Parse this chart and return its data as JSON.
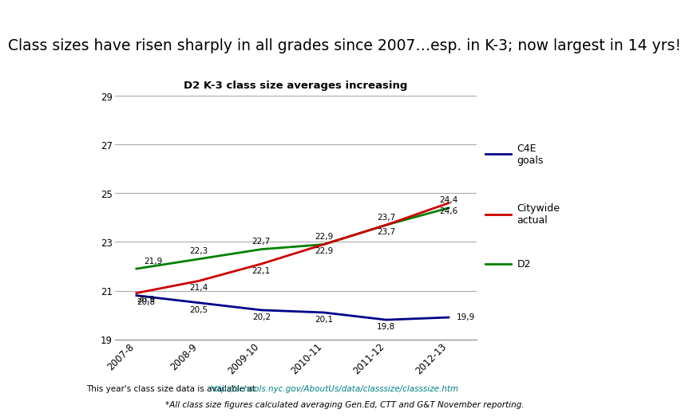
{
  "title_box": "Class sizes have risen sharply in all grades since 2007…esp. in K-3; now largest in 14 yrs!",
  "chart_title": "D2 K-3 class size averages increasing",
  "x_labels": [
    "2007-8",
    "2008-9",
    "2009-10",
    "2010-11",
    "2011-12",
    "2012-13"
  ],
  "d2_values": [
    21.9,
    22.3,
    22.7,
    22.9,
    23.7,
    24.4
  ],
  "citywide_values": [
    20.9,
    21.4,
    22.1,
    22.9,
    23.7,
    24.6
  ],
  "c4e_values": [
    20.8,
    20.5,
    20.2,
    20.1,
    19.8,
    19.9
  ],
  "d2_labels": [
    "21,9",
    "22,3",
    "22,7",
    "22,9",
    "23,7",
    "24,4"
  ],
  "citywide_labels": [
    "20,9",
    "21,4",
    "22,1",
    "22,9",
    "23,7",
    "24,6"
  ],
  "c4e_labels": [
    "20,8",
    "20,5",
    "20,2",
    "20,1",
    "19,8",
    "19,9"
  ],
  "d2_color": "#008000",
  "citywide_color": "#cc0000",
  "c4e_color": "#00008B",
  "ylim": [
    19,
    29
  ],
  "yticks": [
    19,
    21,
    23,
    25,
    27,
    29
  ],
  "bg_title_color": "#c8ddf0",
  "title_border_color": "#7aa7c7",
  "footer_plain": "This year's class size data is available at ",
  "footer_url": "http://schools.nyc.gov/AboutUs/data/classsize/classsize.htm",
  "footer_italic": "*All class size figures calculated averaging Gen.Ed, CTT and G&T November reporting.",
  "legend_c4e": "C4E\ngoals",
  "legend_citywide": "Citywide\nactual",
  "legend_d2": "D2"
}
